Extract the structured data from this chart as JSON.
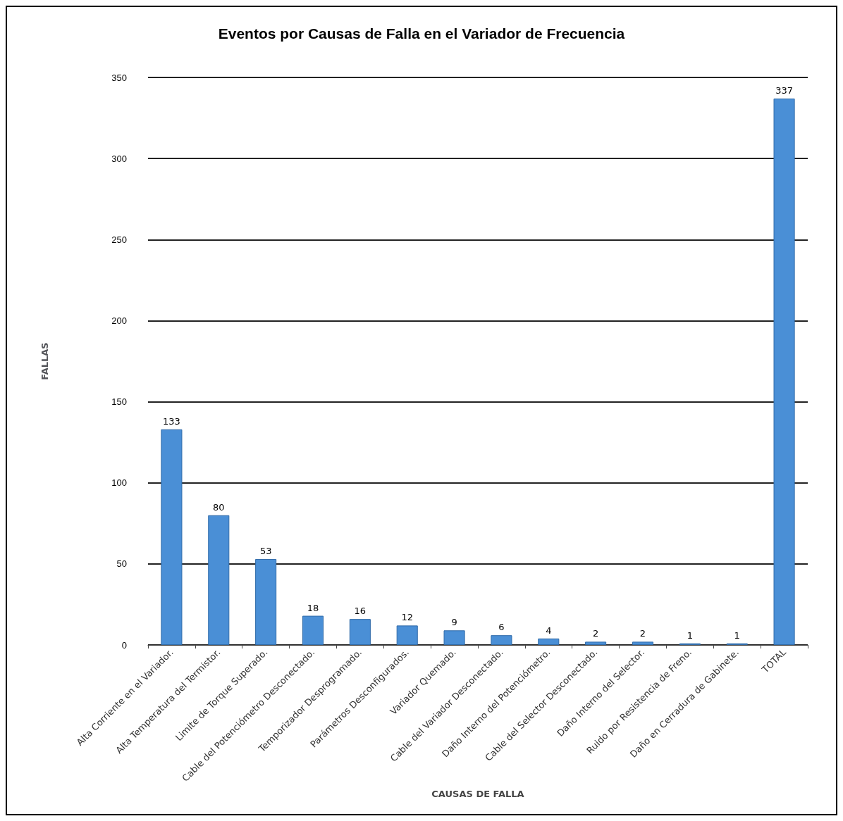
{
  "chart_data": {
    "type": "bar",
    "title": "Eventos por Causas de Falla en el Variador de Frecuencia",
    "xlabel": "CAUSAS DE FALLA",
    "ylabel": "FALLAS",
    "categories": [
      "Alta Corriente en el Variador.",
      "Alta Temperatura del Termistor.",
      "Limite de Torque Superado.",
      "Cable del Potenciómetro Desconectado.",
      "Temporizador Desprogramado.",
      "Parámetros Desconfigurados.",
      "Variador Quemado.",
      "Cable del Variador Desconectado.",
      "Daño Interno del Potenciómetro.",
      "Cable del Selector Desconectado.",
      "Daño Interno del Selector.",
      "Ruido por Resistencia de Freno.",
      "Daño en Cerradura de Gabinete.",
      "TOTAL"
    ],
    "values": [
      133,
      80,
      53,
      18,
      16,
      12,
      9,
      6,
      4,
      2,
      2,
      1,
      1,
      337
    ],
    "color": "#4a8fd6",
    "ylim": [
      0,
      350
    ],
    "yticks": [
      0,
      50,
      100,
      150,
      200,
      250,
      300,
      350
    ],
    "grid": "y",
    "data_labels": true
  }
}
